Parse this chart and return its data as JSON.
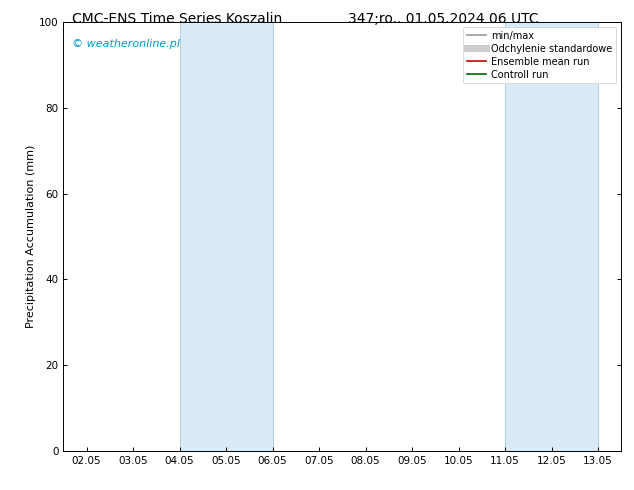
{
  "title_left": "CMC-ENS Time Series Koszalin",
  "title_right": "347;ro.. 01.05.2024 06 UTC",
  "ylabel": "Precipitation Accumulation (mm)",
  "watermark": "© weatheronline.pl",
  "ylim": [
    0,
    100
  ],
  "yticks": [
    0,
    20,
    40,
    60,
    80,
    100
  ],
  "xtick_labels": [
    "02.05",
    "03.05",
    "04.05",
    "05.05",
    "06.05",
    "07.05",
    "08.05",
    "09.05",
    "10.05",
    "11.05",
    "12.05",
    "13.05"
  ],
  "shaded_bands": [
    {
      "xmin": 2,
      "xmax": 4
    },
    {
      "xmin": 9,
      "xmax": 11
    }
  ],
  "shade_color": "#daeaf7",
  "band_edge_color": "#b0cfe8",
  "legend_items": [
    {
      "label": "min/max",
      "color": "#999999",
      "lw": 1.2,
      "style": "-"
    },
    {
      "label": "Odchylenie standardowe",
      "color": "#cccccc",
      "lw": 5,
      "style": "-"
    },
    {
      "label": "Ensemble mean run",
      "color": "#cc0000",
      "lw": 1.2,
      "style": "-"
    },
    {
      "label": "Controll run",
      "color": "#006600",
      "lw": 1.2,
      "style": "-"
    }
  ],
  "watermark_color": "#0099cc",
  "background_color": "#ffffff",
  "title_fontsize": 10,
  "ylabel_fontsize": 8,
  "tick_fontsize": 7.5,
  "legend_fontsize": 7,
  "watermark_fontsize": 8
}
